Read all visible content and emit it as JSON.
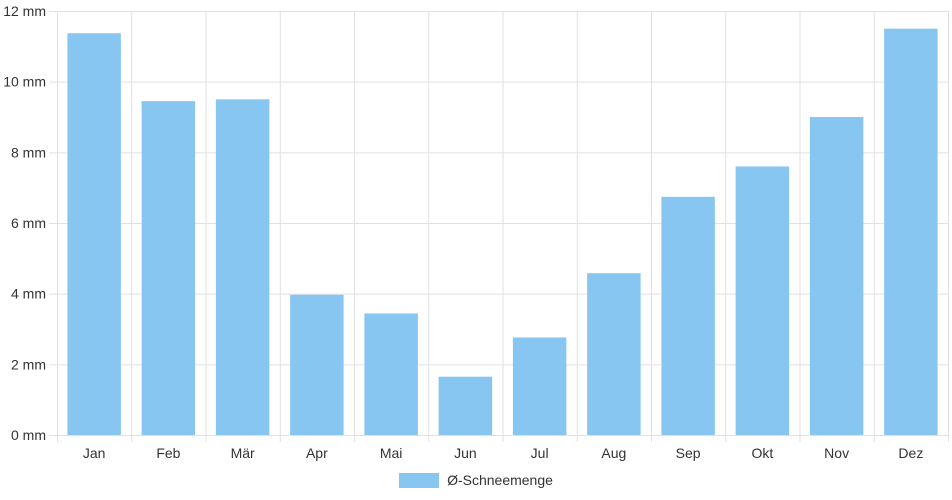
{
  "chart_data": {
    "type": "bar",
    "categories": [
      "Jan",
      "Feb",
      "Mär",
      "Apr",
      "Mai",
      "Jun",
      "Jul",
      "Aug",
      "Sep",
      "Okt",
      "Nov",
      "Dez"
    ],
    "series": [
      {
        "name": "Ø-Schneemenge",
        "values": [
          11.37,
          9.45,
          9.5,
          3.97,
          3.44,
          1.65,
          2.76,
          4.58,
          6.74,
          7.6,
          9.0,
          11.5
        ],
        "color": "#88c6f2"
      }
    ],
    "yticks": [
      "0 mm",
      "2 mm",
      "4 mm",
      "6 mm",
      "8 mm",
      "10 mm",
      "12 mm"
    ],
    "ylim": [
      0,
      12
    ],
    "grid": true,
    "legend_position": "bottom"
  }
}
